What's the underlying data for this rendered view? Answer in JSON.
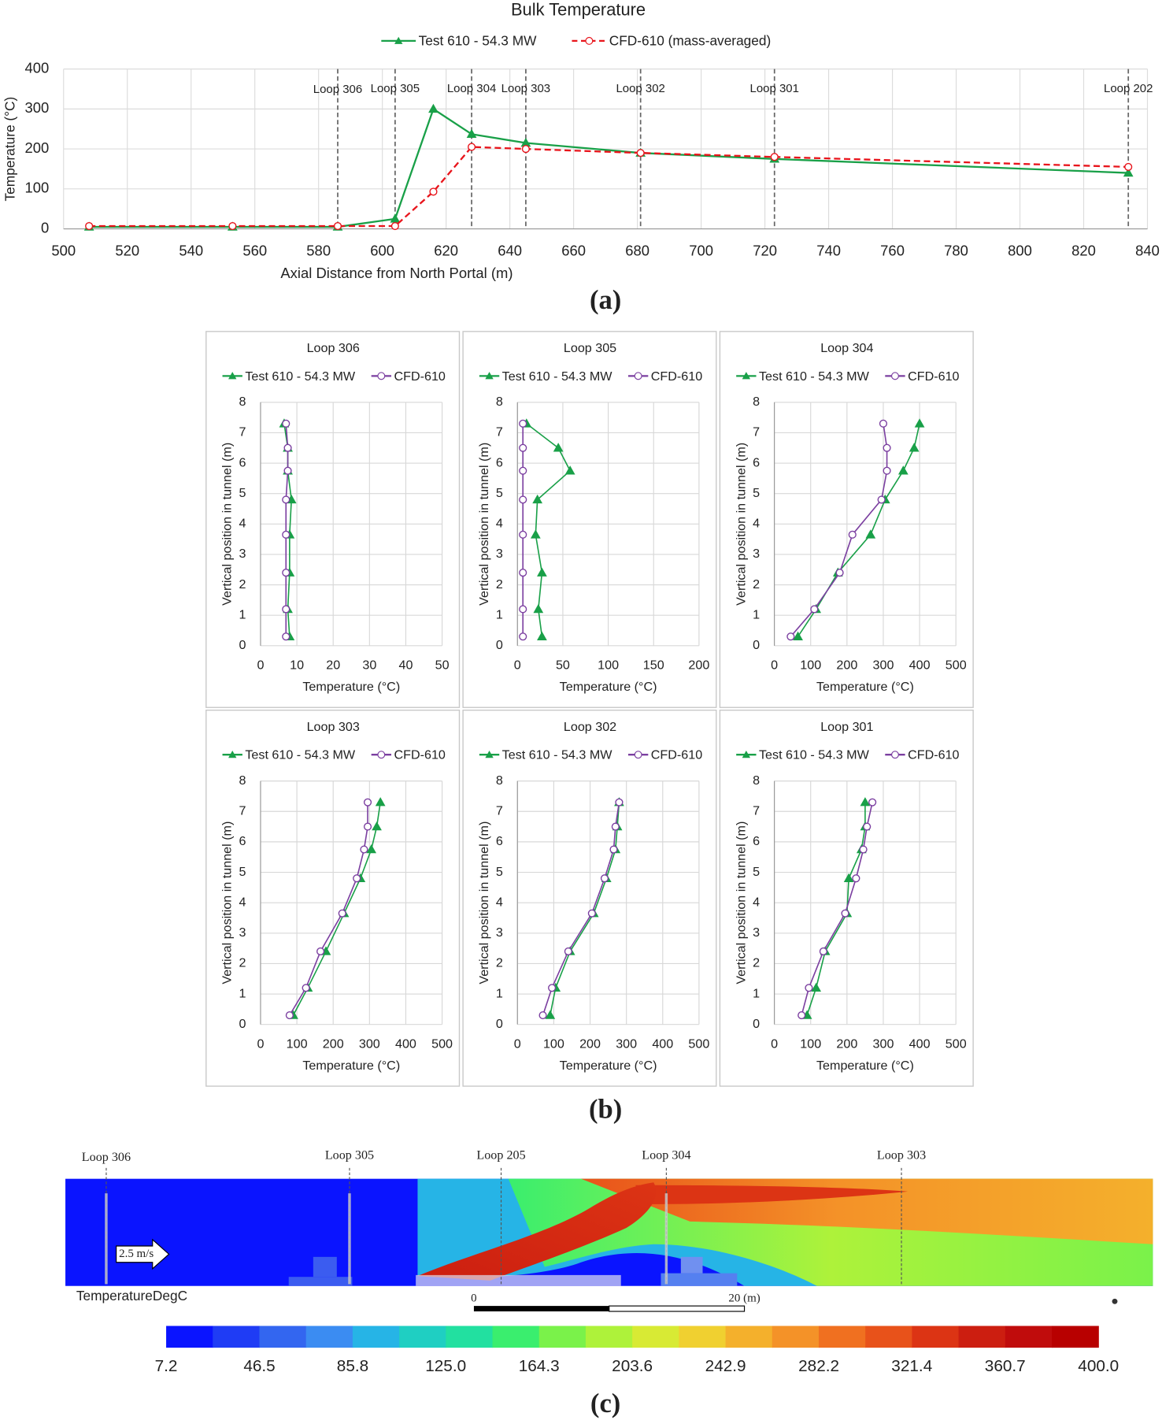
{
  "chart_data": [
    {
      "type": "line",
      "title": "Bulk Temperature",
      "xlabel": "Axial Distance from North Portal (m)",
      "ylabel": "Temperature (°C)",
      "x": [
        508,
        553,
        586,
        604,
        616,
        628,
        645,
        681,
        723,
        834
      ],
      "series": [
        {
          "name": "Test 610 - 54.3 MW",
          "color": "#19a048",
          "marker": "triangle",
          "values": [
            5,
            5,
            5,
            25,
            300,
            237,
            215,
            190,
            175,
            140
          ]
        },
        {
          "name": "CFD-610 (mass-averaged)",
          "color": "#e8141b",
          "marker": "circle",
          "dashed": true,
          "values": [
            7,
            7,
            7,
            7,
            93,
            205,
            200,
            190,
            180,
            155
          ]
        }
      ],
      "xlim": [
        500,
        840
      ],
      "xticks": [
        500,
        520,
        540,
        560,
        580,
        600,
        620,
        640,
        660,
        680,
        700,
        720,
        740,
        760,
        780,
        800,
        820,
        840
      ],
      "ylim": [
        0,
        400
      ],
      "yticks": [
        0,
        100,
        200,
        300,
        400
      ],
      "grid": true,
      "annotations": [
        {
          "label": "Loop 306",
          "x": 586
        },
        {
          "label": "Loop 305",
          "x": 604
        },
        {
          "label": "Loop 304",
          "x": 628
        },
        {
          "label": "Loop 303",
          "x": 645
        },
        {
          "label": "Loop 302",
          "x": 681
        },
        {
          "label": "Loop 301",
          "x": 723
        },
        {
          "label": "Loop 202",
          "x": 834
        }
      ]
    },
    {
      "type": "profile",
      "title": "Loop 306",
      "xlabel": "Temperature (°C)",
      "ylabel": "Vertical position in tunnel (m)",
      "y": [
        0.3,
        1.2,
        2.4,
        3.65,
        4.8,
        5.75,
        6.5,
        7.3
      ],
      "series": [
        {
          "name": "Test 610 - 54.3 MW",
          "color": "#19a048",
          "marker": "triangle",
          "values": [
            8,
            7.5,
            8,
            8,
            8.5,
            7.5,
            7.5,
            6.5
          ]
        },
        {
          "name": "CFD-610",
          "color": "#7b3fa0",
          "marker": "circle",
          "values": [
            7,
            7,
            7,
            7,
            7,
            7.5,
            7.5,
            7
          ]
        }
      ],
      "xlim": [
        0,
        50
      ],
      "xticks": [
        0,
        10,
        20,
        30,
        40,
        50
      ],
      "ylim": [
        0,
        8
      ],
      "yticks": [
        0,
        1,
        2,
        3,
        4,
        5,
        6,
        7,
        8
      ],
      "grid": true
    },
    {
      "type": "profile",
      "title": "Loop 305",
      "xlabel": "Temperature (°C)",
      "ylabel": "Vertical position in tunnel (m)",
      "y": [
        0.3,
        1.2,
        2.4,
        3.65,
        4.8,
        5.75,
        6.5,
        7.3
      ],
      "series": [
        {
          "name": "Test 610 - 54.3 MW",
          "color": "#19a048",
          "marker": "triangle",
          "values": [
            27,
            23,
            27,
            20,
            22,
            58,
            45,
            10
          ]
        },
        {
          "name": "CFD-610",
          "color": "#7b3fa0",
          "marker": "circle",
          "values": [
            6,
            6,
            6,
            6,
            6,
            6,
            6,
            6
          ]
        }
      ],
      "xlim": [
        0,
        200
      ],
      "xticks": [
        0,
        50,
        100,
        150,
        200
      ],
      "ylim": [
        0,
        8
      ],
      "yticks": [
        0,
        1,
        2,
        3,
        4,
        5,
        6,
        7,
        8
      ],
      "grid": true
    },
    {
      "type": "profile",
      "title": "Loop 304",
      "xlabel": "Temperature (°C)",
      "ylabel": "Vertical position in tunnel (m)",
      "y": [
        0.3,
        1.2,
        2.4,
        3.65,
        4.8,
        5.75,
        6.5,
        7.3
      ],
      "series": [
        {
          "name": "Test 610 - 54.3 MW",
          "color": "#19a048",
          "marker": "triangle",
          "values": [
            65,
            115,
            175,
            265,
            305,
            355,
            385,
            400
          ]
        },
        {
          "name": "CFD-610",
          "color": "#7b3fa0",
          "marker": "circle",
          "values": [
            45,
            110,
            180,
            215,
            295,
            310,
            310,
            300
          ]
        }
      ],
      "xlim": [
        0,
        500
      ],
      "xticks": [
        0,
        100,
        200,
        300,
        400,
        500
      ],
      "ylim": [
        0,
        8
      ],
      "yticks": [
        0,
        1,
        2,
        3,
        4,
        5,
        6,
        7,
        8
      ],
      "grid": true
    },
    {
      "type": "profile",
      "title": "Loop 303",
      "xlabel": "Temperature (°C)",
      "ylabel": "Vertical position in tunnel (m)",
      "y": [
        0.3,
        1.2,
        2.4,
        3.65,
        4.8,
        5.75,
        6.5,
        7.3
      ],
      "series": [
        {
          "name": "Test 610 - 54.3 MW",
          "color": "#19a048",
          "marker": "triangle",
          "values": [
            90,
            130,
            180,
            230,
            275,
            305,
            320,
            330
          ]
        },
        {
          "name": "CFD-610",
          "color": "#7b3fa0",
          "marker": "circle",
          "values": [
            80,
            125,
            165,
            225,
            265,
            285,
            295,
            295
          ]
        }
      ],
      "xlim": [
        0,
        500
      ],
      "xticks": [
        0,
        100,
        200,
        300,
        400,
        500
      ],
      "ylim": [
        0,
        8
      ],
      "yticks": [
        0,
        1,
        2,
        3,
        4,
        5,
        6,
        7,
        8
      ],
      "grid": true
    },
    {
      "type": "profile",
      "title": "Loop 302",
      "xlabel": "Temperature (°C)",
      "ylabel": "Vertical position in tunnel (m)",
      "y": [
        0.3,
        1.2,
        2.4,
        3.65,
        4.8,
        5.75,
        6.5,
        7.3
      ],
      "series": [
        {
          "name": "Test 610 - 54.3 MW",
          "color": "#19a048",
          "marker": "triangle",
          "values": [
            90,
            105,
            145,
            210,
            245,
            270,
            275,
            280
          ]
        },
        {
          "name": "CFD-610",
          "color": "#7b3fa0",
          "marker": "circle",
          "values": [
            70,
            95,
            140,
            205,
            240,
            265,
            270,
            280
          ]
        }
      ],
      "xlim": [
        0,
        500
      ],
      "xticks": [
        0,
        100,
        200,
        300,
        400,
        500
      ],
      "ylim": [
        0,
        8
      ],
      "yticks": [
        0,
        1,
        2,
        3,
        4,
        5,
        6,
        7,
        8
      ],
      "grid": true
    },
    {
      "type": "profile",
      "title": "Loop 301",
      "xlabel": "Temperature (°C)",
      "ylabel": "Vertical position in tunnel (m)",
      "y": [
        0.3,
        1.2,
        2.4,
        3.65,
        4.8,
        5.75,
        6.5,
        7.3
      ],
      "series": [
        {
          "name": "Test 610 - 54.3 MW",
          "color": "#19a048",
          "marker": "triangle",
          "values": [
            90,
            115,
            140,
            200,
            205,
            240,
            250,
            250
          ]
        },
        {
          "name": "CFD-610",
          "color": "#7b3fa0",
          "marker": "circle",
          "values": [
            75,
            95,
            135,
            195,
            225,
            245,
            255,
            270
          ]
        }
      ],
      "xlim": [
        0,
        500
      ],
      "xticks": [
        0,
        100,
        200,
        300,
        400,
        500
      ],
      "ylim": [
        0,
        8
      ],
      "yticks": [
        0,
        1,
        2,
        3,
        4,
        5,
        6,
        7,
        8
      ],
      "grid": true
    }
  ],
  "panel_labels": [
    "(a)",
    "(b)",
    "(c)"
  ],
  "contour": {
    "loops": [
      "Loop 306",
      "Loop 305",
      "Loop 205",
      "Loop 304",
      "Loop 303"
    ],
    "velocity": "2.5 m/s",
    "variable": "TemperatureDegC",
    "scale_start": "0",
    "scale_end": "20 (m)",
    "colors": [
      "#0a14ff",
      "#1f3cf5",
      "#3366f0",
      "#3b8cf2",
      "#26b4e6",
      "#1fcfc2",
      "#22e0a0",
      "#3aee6e",
      "#7af24a",
      "#aef23a",
      "#d8ea34",
      "#f0d030",
      "#f4b02c",
      "#f49228",
      "#f07020",
      "#e8521a",
      "#dc3414",
      "#cc1e10",
      "#c00c0c",
      "#b80000"
    ],
    "ticks": [
      7.2,
      46.5,
      85.8,
      {
        "value": 125.0,
        "label": "125.0"
      },
      164.3,
      203.6,
      242.9,
      282.2,
      321.4,
      360.7,
      {
        "value": 400.0,
        "label": "400.0"
      }
    ]
  }
}
